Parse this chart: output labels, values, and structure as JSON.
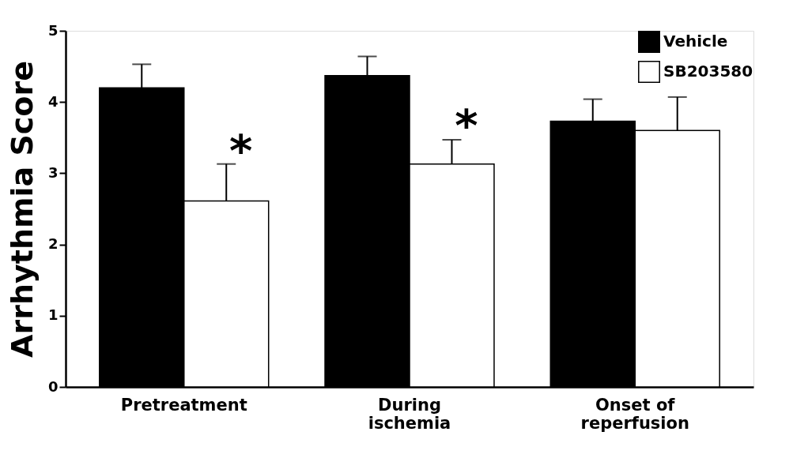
{
  "chart_data": {
    "type": "bar",
    "ylabel": "Arrhythmia Score",
    "categories": [
      "Pretreatment",
      "During\nischemia",
      "Onset of\nreperfusion"
    ],
    "series": [
      {
        "name": "Vehicle",
        "color": "#000000",
        "values": [
          4.2,
          4.37,
          3.73
        ],
        "errors": [
          [
            4.2,
            4.53
          ],
          [
            4.37,
            4.64
          ],
          [
            3.73,
            4.04
          ]
        ]
      },
      {
        "name": "SB203580",
        "color": "#ffffff",
        "values": [
          2.61,
          3.13,
          3.6
        ],
        "errors": [
          [
            2.61,
            3.13
          ],
          [
            3.13,
            3.47
          ],
          [
            3.6,
            4.07
          ]
        ]
      }
    ],
    "ylim": [
      0,
      5
    ],
    "yticks": [
      0,
      1,
      2,
      3,
      4,
      5
    ],
    "grid": false,
    "legend": "top right",
    "annotations": [
      {
        "text": "*",
        "x": "Pretreatment",
        "y": 3.45
      },
      {
        "text": "*",
        "x": "During\nischemia",
        "y": 3.8
      }
    ]
  }
}
